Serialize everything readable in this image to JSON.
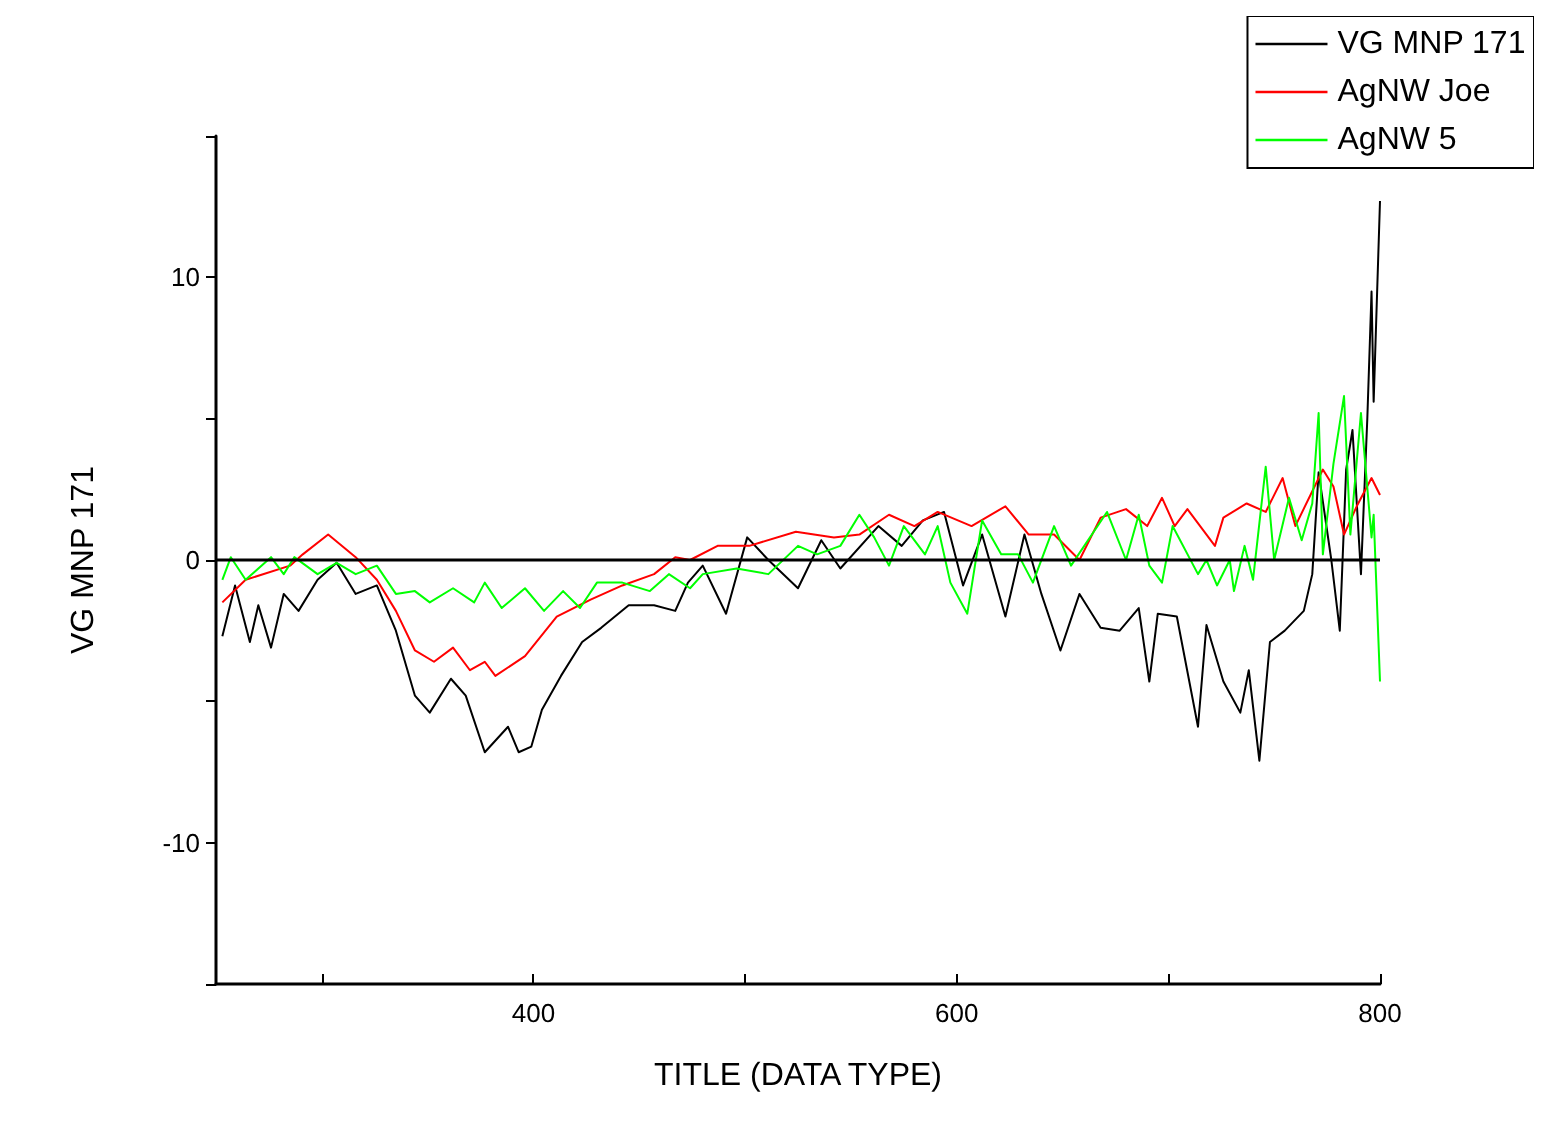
{
  "chart_data": {
    "type": "line",
    "xlabel": "TITLE (DATA TYPE)",
    "ylabel": "VG MNP 171",
    "xlim": [
      250,
      800
    ],
    "xticks": [
      {
        "value": 300,
        "label": null
      },
      400,
      {
        "value": 500,
        "label": null
      },
      600,
      {
        "value": 700,
        "label": null
      },
      800
    ],
    "ylim": [
      -15,
      15
    ],
    "yticks": [
      {
        "value": -15,
        "label": null
      },
      -10,
      {
        "value": -5,
        "label": null
      },
      0,
      {
        "value": 5,
        "label": null
      },
      10,
      {
        "value": 15,
        "label": null
      }
    ],
    "grid": false,
    "legend": "top right",
    "marker": "none",
    "line_style": "solid",
    "ref_lines": [
      {
        "axis": "y",
        "value": 0,
        "color": "#000000"
      }
    ],
    "series": [
      {
        "name": "VG MNP 171",
        "color": "#000000",
        "x": [
          253,
          259,
          266,
          270,
          276,
          282,
          289,
          298,
          307,
          316,
          326,
          335,
          344,
          351,
          361,
          368,
          377,
          388,
          393,
          399,
          404,
          413,
          423,
          432,
          445,
          457,
          467,
          473,
          480,
          491,
          501,
          511,
          525,
          536,
          545,
          563,
          574,
          584,
          594,
          603,
          612,
          623,
          632,
          640,
          649,
          658,
          668,
          677,
          686,
          691,
          695,
          704,
          714,
          718,
          726,
          734,
          738,
          743,
          748,
          755,
          764,
          768,
          771,
          777,
          781,
          784,
          787,
          791,
          794,
          796,
          797,
          800
        ],
        "values": [
          -2.7,
          -0.9,
          -2.9,
          -1.6,
          -3.1,
          -1.2,
          -1.8,
          -0.7,
          -0.1,
          -1.2,
          -0.9,
          -2.5,
          -4.8,
          -5.4,
          -4.2,
          -4.8,
          -6.8,
          -5.9,
          -6.8,
          -6.6,
          -5.3,
          -4.1,
          -2.9,
          -2.4,
          -1.6,
          -1.6,
          -1.8,
          -0.8,
          -0.2,
          -1.9,
          0.8,
          0,
          -1.0,
          0.7,
          -0.3,
          1.2,
          0.5,
          1.4,
          1.7,
          -0.9,
          0.9,
          -2.0,
          0.9,
          -1.2,
          -3.2,
          -1.2,
          -2.4,
          -2.5,
          -1.7,
          -4.3,
          -1.9,
          -2.0,
          -5.9,
          -2.3,
          -4.3,
          -5.4,
          -3.9,
          -7.1,
          -2.9,
          -2.5,
          -1.8,
          -0.5,
          3.1,
          0,
          -2.5,
          3.2,
          4.6,
          -0.5,
          5.0,
          9.5,
          5.6,
          12.7
        ]
      },
      {
        "name": "AgNW Joe",
        "color": "#ff0000",
        "x": [
          253,
          264,
          285,
          291,
          303,
          316,
          326,
          335,
          344,
          353,
          362,
          370,
          377,
          382,
          396,
          411,
          427,
          442,
          457,
          467,
          474,
          487,
          502,
          524,
          542,
          554,
          568,
          580,
          591,
          607,
          623,
          634,
          646,
          658,
          668,
          680,
          690,
          697,
          703,
          709,
          722,
          726,
          737,
          746,
          754,
          760,
          773,
          778,
          783,
          789,
          796,
          800
        ],
        "values": [
          -1.5,
          -0.7,
          -0.2,
          0.2,
          0.9,
          0.1,
          -0.7,
          -1.8,
          -3.2,
          -3.6,
          -3.1,
          -3.9,
          -3.6,
          -4.1,
          -3.4,
          -2.0,
          -1.4,
          -0.9,
          -0.5,
          0.1,
          0,
          0.5,
          0.5,
          1.0,
          0.8,
          0.9,
          1.6,
          1.2,
          1.7,
          1.2,
          1.9,
          0.9,
          0.9,
          0,
          1.5,
          1.8,
          1.2,
          2.2,
          1.2,
          1.8,
          0.5,
          1.5,
          2.0,
          1.7,
          2.9,
          1.2,
          3.2,
          2.6,
          0.9,
          1.9,
          2.9,
          2.3
        ]
      },
      {
        "name": "AgNW 5",
        "color": "#00ff00",
        "x": [
          253,
          257,
          264,
          276,
          282,
          287,
          298,
          307,
          316,
          326,
          335,
          344,
          351,
          362,
          372,
          377,
          385,
          396,
          405,
          414,
          422,
          430,
          442,
          455,
          464,
          474,
          480,
          496,
          511,
          525,
          534,
          545,
          554,
          561,
          568,
          575,
          585,
          591,
          597,
          605,
          612,
          621,
          629,
          636,
          646,
          654,
          671,
          680,
          686,
          691,
          697,
          702,
          714,
          718,
          723,
          729,
          731,
          736,
          740,
          746,
          750,
          757,
          763,
          768,
          771,
          773,
          778,
          783,
          786,
          791,
          796,
          797,
          800
        ],
        "values": [
          -0.7,
          0.1,
          -0.7,
          0.1,
          -0.5,
          0.1,
          -0.5,
          -0.1,
          -0.5,
          -0.2,
          -1.2,
          -1.1,
          -1.5,
          -1.0,
          -1.5,
          -0.8,
          -1.7,
          -1.0,
          -1.8,
          -1.1,
          -1.7,
          -0.8,
          -0.8,
          -1.1,
          -0.5,
          -1.0,
          -0.5,
          -0.3,
          -0.5,
          0.5,
          0.2,
          0.5,
          1.6,
          0.8,
          -0.2,
          1.2,
          0.2,
          1.2,
          -0.8,
          -1.9,
          1.4,
          0.2,
          0.2,
          -0.8,
          1.2,
          -0.2,
          1.7,
          0,
          1.6,
          -0.2,
          -0.8,
          1.2,
          -0.5,
          0,
          -0.9,
          0,
          -1.1,
          0.5,
          -0.7,
          3.3,
          0,
          2.2,
          0.7,
          2.0,
          5.2,
          0.2,
          3.4,
          5.8,
          0.9,
          5.2,
          0.8,
          1.6,
          -4.3
        ]
      }
    ]
  }
}
